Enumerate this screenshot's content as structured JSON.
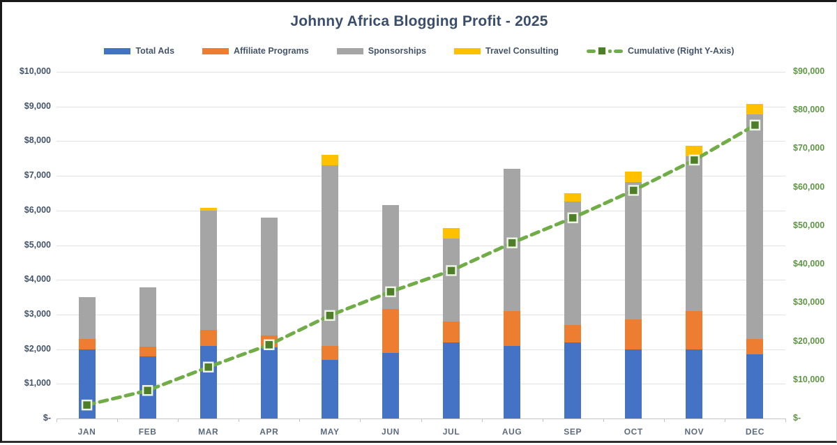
{
  "chart_data": {
    "type": "bar",
    "subtype": "stacked-column-with-cumulative-line",
    "title": "Johnny Africa Blogging Profit - 2025",
    "categories": [
      "JAN",
      "FEB",
      "MAR",
      "APR",
      "MAY",
      "JUN",
      "JUL",
      "AUG",
      "SEP",
      "OCT",
      "NOV",
      "DEC"
    ],
    "series": [
      {
        "name": "Total Ads",
        "color": "#4472c4",
        "values": [
          2000,
          1800,
          2100,
          2050,
          1700,
          1900,
          2200,
          2100,
          2200,
          2000,
          2000,
          1850
        ]
      },
      {
        "name": "Affiliate Programs",
        "color": "#ed7d31",
        "values": [
          300,
          275,
          450,
          350,
          400,
          1250,
          600,
          1000,
          500,
          850,
          1100,
          450
        ]
      },
      {
        "name": "Sponsorships",
        "color": "#a5a5a5",
        "values": [
          1200,
          1700,
          3450,
          3400,
          5200,
          3000,
          2400,
          4100,
          3550,
          3975,
          4475,
          6475
        ]
      },
      {
        "name": "Travel Consulting",
        "color": "#ffc000",
        "values": [
          0,
          0,
          75,
          0,
          300,
          0,
          300,
          0,
          250,
          300,
          300,
          300
        ]
      }
    ],
    "line_series": {
      "name": "Cumulative (Right Y-Axis)",
      "axis": "right",
      "color": "#70ad47",
      "marker_color": "#4e7e27",
      "marker_border_color": "#edf3e6",
      "values": [
        3500,
        7275,
        13350,
        19150,
        26750,
        32900,
        38400,
        45600,
        52100,
        59225,
        67100,
        76175
      ]
    },
    "monthly_totals": [
      3500,
      3775,
      6075,
      5800,
      7600,
      6150,
      5500,
      7200,
      6500,
      7125,
      7875,
      9075
    ],
    "left_axis": {
      "min": 0,
      "max": 10000,
      "step": 1000,
      "tick_labels": [
        "$-",
        "$1,000",
        "$2,000",
        "$3,000",
        "$4,000",
        "$5,000",
        "$6,000",
        "$7,000",
        "$8,000",
        "$9,000",
        "$10,000"
      ],
      "label_color": "#44546a"
    },
    "right_axis": {
      "min": 0,
      "max": 90000,
      "step": 10000,
      "tick_labels": [
        "$-",
        "$10,000",
        "$20,000",
        "$30,000",
        "$40,000",
        "$50,000",
        "$60,000",
        "$70,000",
        "$80,000",
        "$90,000"
      ],
      "label_color": "#5f9646"
    },
    "grid": true,
    "legend_position": "top",
    "title_color": "#3a4e6b"
  }
}
